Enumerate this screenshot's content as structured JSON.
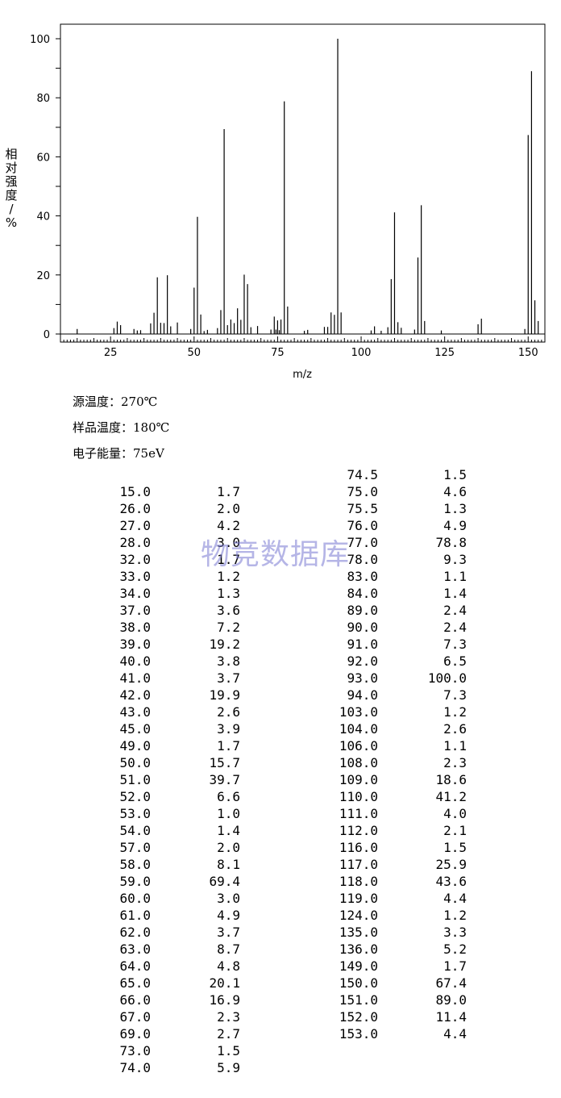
{
  "chart_data": {
    "type": "bar",
    "xlabel": "m/z",
    "ylabel": "相对强度/%",
    "xlim": [
      10,
      155
    ],
    "ylim": [
      0,
      100
    ],
    "x_ticks": [
      25,
      50,
      75,
      100,
      125,
      150
    ],
    "y_ticks": [
      0,
      20,
      40,
      60,
      80,
      100
    ],
    "peaks": [
      [
        15.0,
        1.7
      ],
      [
        26.0,
        2.0
      ],
      [
        27.0,
        4.2
      ],
      [
        28.0,
        3.0
      ],
      [
        32.0,
        1.7
      ],
      [
        33.0,
        1.2
      ],
      [
        34.0,
        1.3
      ],
      [
        37.0,
        3.6
      ],
      [
        38.0,
        7.2
      ],
      [
        39.0,
        19.2
      ],
      [
        40.0,
        3.8
      ],
      [
        41.0,
        3.7
      ],
      [
        42.0,
        19.9
      ],
      [
        43.0,
        2.6
      ],
      [
        45.0,
        3.9
      ],
      [
        49.0,
        1.7
      ],
      [
        50.0,
        15.7
      ],
      [
        51.0,
        39.7
      ],
      [
        52.0,
        6.6
      ],
      [
        53.0,
        1.0
      ],
      [
        54.0,
        1.4
      ],
      [
        57.0,
        2.0
      ],
      [
        58.0,
        8.1
      ],
      [
        59.0,
        69.4
      ],
      [
        60.0,
        3.0
      ],
      [
        61.0,
        4.9
      ],
      [
        62.0,
        3.7
      ],
      [
        63.0,
        8.7
      ],
      [
        64.0,
        4.8
      ],
      [
        65.0,
        20.1
      ],
      [
        66.0,
        16.9
      ],
      [
        67.0,
        2.3
      ],
      [
        69.0,
        2.7
      ],
      [
        73.0,
        1.5
      ],
      [
        74.0,
        5.9
      ],
      [
        74.5,
        1.5
      ],
      [
        75.0,
        4.6
      ],
      [
        75.5,
        1.3
      ],
      [
        76.0,
        4.9
      ],
      [
        77.0,
        78.8
      ],
      [
        78.0,
        9.3
      ],
      [
        83.0,
        1.1
      ],
      [
        84.0,
        1.4
      ],
      [
        89.0,
        2.4
      ],
      [
        90.0,
        2.4
      ],
      [
        91.0,
        7.3
      ],
      [
        92.0,
        6.5
      ],
      [
        93.0,
        100.0
      ],
      [
        94.0,
        7.3
      ],
      [
        103.0,
        1.2
      ],
      [
        104.0,
        2.6
      ],
      [
        106.0,
        1.1
      ],
      [
        108.0,
        2.3
      ],
      [
        109.0,
        18.6
      ],
      [
        110.0,
        41.2
      ],
      [
        111.0,
        4.0
      ],
      [
        112.0,
        2.1
      ],
      [
        116.0,
        1.5
      ],
      [
        117.0,
        25.9
      ],
      [
        118.0,
        43.6
      ],
      [
        119.0,
        4.4
      ],
      [
        124.0,
        1.2
      ],
      [
        135.0,
        3.3
      ],
      [
        136.0,
        5.2
      ],
      [
        149.0,
        1.7
      ],
      [
        150.0,
        67.4
      ],
      [
        151.0,
        89.0
      ],
      [
        152.0,
        11.4
      ],
      [
        153.0,
        4.4
      ]
    ]
  },
  "conditions": {
    "source_temp": "源温度：270℃",
    "sample_temp": "样品温度：180℃",
    "electron_energy": "电子能量：75eV"
  },
  "watermark": "物竞数据库",
  "table_left": [
    [
      "15.0",
      "1.7"
    ],
    [
      "26.0",
      "2.0"
    ],
    [
      "27.0",
      "4.2"
    ],
    [
      "28.0",
      "3.0"
    ],
    [
      "32.0",
      "1.7"
    ],
    [
      "33.0",
      "1.2"
    ],
    [
      "34.0",
      "1.3"
    ],
    [
      "37.0",
      "3.6"
    ],
    [
      "38.0",
      "7.2"
    ],
    [
      "39.0",
      "19.2"
    ],
    [
      "40.0",
      "3.8"
    ],
    [
      "41.0",
      "3.7"
    ],
    [
      "42.0",
      "19.9"
    ],
    [
      "43.0",
      "2.6"
    ],
    [
      "45.0",
      "3.9"
    ],
    [
      "49.0",
      "1.7"
    ],
    [
      "50.0",
      "15.7"
    ],
    [
      "51.0",
      "39.7"
    ],
    [
      "52.0",
      "6.6"
    ],
    [
      "53.0",
      "1.0"
    ],
    [
      "54.0",
      "1.4"
    ],
    [
      "57.0",
      "2.0"
    ],
    [
      "58.0",
      "8.1"
    ],
    [
      "59.0",
      "69.4"
    ],
    [
      "60.0",
      "3.0"
    ],
    [
      "61.0",
      "4.9"
    ],
    [
      "62.0",
      "3.7"
    ],
    [
      "63.0",
      "8.7"
    ],
    [
      "64.0",
      "4.8"
    ],
    [
      "65.0",
      "20.1"
    ],
    [
      "66.0",
      "16.9"
    ],
    [
      "67.0",
      "2.3"
    ],
    [
      "69.0",
      "2.7"
    ],
    [
      "73.0",
      "1.5"
    ],
    [
      "74.0",
      "5.9"
    ]
  ],
  "table_right": [
    [
      "74.5",
      "1.5"
    ],
    [
      "75.0",
      "4.6"
    ],
    [
      "75.5",
      "1.3"
    ],
    [
      "76.0",
      "4.9"
    ],
    [
      "77.0",
      "78.8"
    ],
    [
      "78.0",
      "9.3"
    ],
    [
      "83.0",
      "1.1"
    ],
    [
      "84.0",
      "1.4"
    ],
    [
      "89.0",
      "2.4"
    ],
    [
      "90.0",
      "2.4"
    ],
    [
      "91.0",
      "7.3"
    ],
    [
      "92.0",
      "6.5"
    ],
    [
      "93.0",
      "100.0"
    ],
    [
      "94.0",
      "7.3"
    ],
    [
      "103.0",
      "1.2"
    ],
    [
      "104.0",
      "2.6"
    ],
    [
      "106.0",
      "1.1"
    ],
    [
      "108.0",
      "2.3"
    ],
    [
      "109.0",
      "18.6"
    ],
    [
      "110.0",
      "41.2"
    ],
    [
      "111.0",
      "4.0"
    ],
    [
      "112.0",
      "2.1"
    ],
    [
      "116.0",
      "1.5"
    ],
    [
      "117.0",
      "25.9"
    ],
    [
      "118.0",
      "43.6"
    ],
    [
      "119.0",
      "4.4"
    ],
    [
      "124.0",
      "1.2"
    ],
    [
      "135.0",
      "3.3"
    ],
    [
      "136.0",
      "5.2"
    ],
    [
      "149.0",
      "1.7"
    ],
    [
      "150.0",
      "67.4"
    ],
    [
      "151.0",
      "89.0"
    ],
    [
      "152.0",
      "11.4"
    ],
    [
      "153.0",
      "4.4"
    ]
  ]
}
